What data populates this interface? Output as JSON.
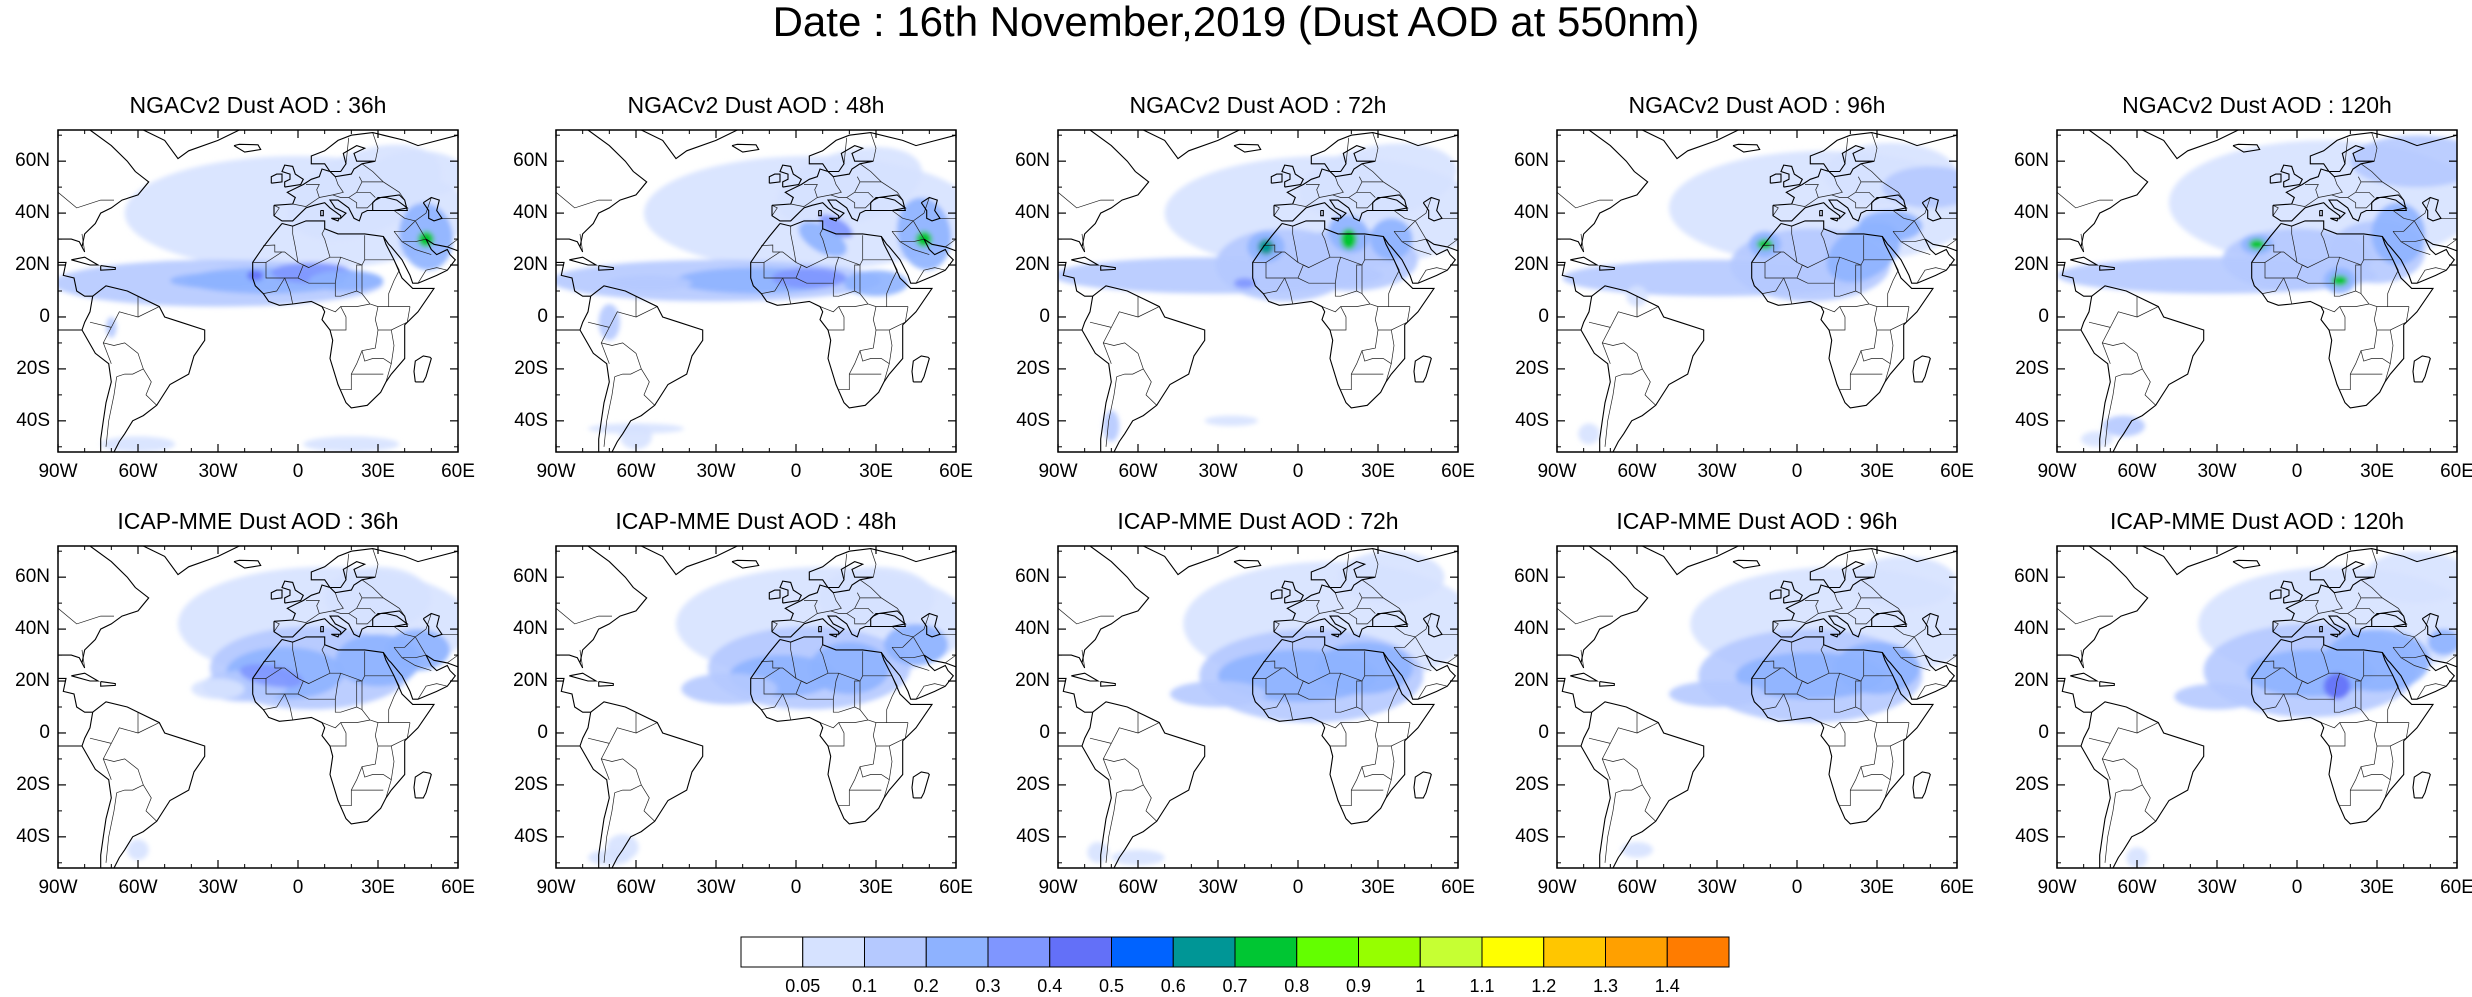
{
  "title": "Date : 16th November,2019 (Dust AOD at 550nm)",
  "panels": [
    {
      "title": "NGACv2 Dust AOD : 36h",
      "model": "NGACv2",
      "lead": "36h"
    },
    {
      "title": "NGACv2 Dust AOD : 48h",
      "model": "NGACv2",
      "lead": "48h"
    },
    {
      "title": "NGACv2 Dust AOD : 72h",
      "model": "NGACv2",
      "lead": "72h"
    },
    {
      "title": "NGACv2 Dust AOD : 96h",
      "model": "NGACv2",
      "lead": "96h"
    },
    {
      "title": "NGACv2 Dust AOD : 120h",
      "model": "NGACv2",
      "lead": "120h"
    },
    {
      "title": "ICAP-MME Dust AOD : 36h",
      "model": "ICAP-MME",
      "lead": "36h"
    },
    {
      "title": "ICAP-MME Dust AOD : 48h",
      "model": "ICAP-MME",
      "lead": "48h"
    },
    {
      "title": "ICAP-MME Dust AOD : 72h",
      "model": "ICAP-MME",
      "lead": "72h"
    },
    {
      "title": "ICAP-MME Dust AOD : 96h",
      "model": "ICAP-MME",
      "lead": "96h"
    },
    {
      "title": "ICAP-MME Dust AOD : 120h",
      "model": "ICAP-MME",
      "lead": "120h"
    }
  ],
  "latitude_labels": [
    "60N",
    "40N",
    "20N",
    "0",
    "20S",
    "40S"
  ],
  "longitude_labels": [
    "90W",
    "60W",
    "30W",
    "0",
    "30E",
    "60E"
  ],
  "colorbar": {
    "labels": [
      "0.05",
      "0.1",
      "0.2",
      "0.3",
      "0.4",
      "0.5",
      "0.6",
      "0.7",
      "0.8",
      "0.9",
      "1",
      "1.1",
      "1.2",
      "1.3",
      "1.4"
    ],
    "colors": [
      "#ffffff",
      "#d6e2ff",
      "#b5c9ff",
      "#8eb2ff",
      "#7f96ff",
      "#6370f8",
      "#0063ff",
      "#009696",
      "#00c633",
      "#63ff00",
      "#96ff00",
      "#c6ff33",
      "#ffff00",
      "#ffc600",
      "#ffa000",
      "#ff7c00",
      "#ff1900"
    ]
  }
}
